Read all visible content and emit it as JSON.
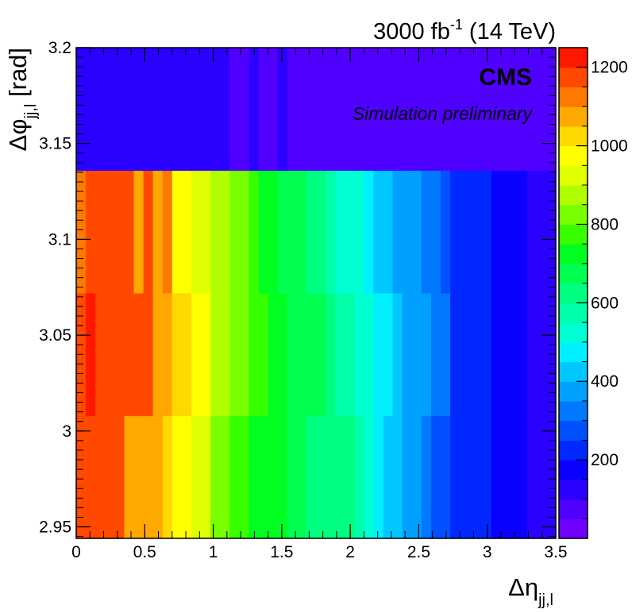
{
  "chart_data": {
    "type": "heatmap",
    "title": "3000 fb^{-1} (14 TeV)",
    "title_parts": {
      "main": "3000 fb",
      "sup": "-1",
      "rest": " (14 TeV)"
    },
    "experiment": "CMS",
    "subtitle": "Simulation preliminary",
    "xlabel": {
      "symbol": "Δη",
      "sub": "jj,l"
    },
    "ylabel": {
      "symbol": "Δφ",
      "sub": "jj,l",
      "unit": " [rad]"
    },
    "xlim": [
      0,
      3.5
    ],
    "ylim": [
      2.944,
      3.2
    ],
    "zlim": [
      0,
      1250
    ],
    "x_ticks": [
      "0",
      "0.5",
      "1",
      "1.5",
      "2",
      "2.5",
      "3",
      "3.5"
    ],
    "x_tick_values": [
      0,
      0.5,
      1,
      1.5,
      2,
      2.5,
      3,
      3.5
    ],
    "y_ticks": [
      "2.95",
      "3",
      "3.05",
      "3.1",
      "3.15",
      "3.2"
    ],
    "y_tick_values": [
      2.95,
      3.0,
      3.05,
      3.1,
      3.15,
      3.2
    ],
    "z_ticks": [
      "200",
      "400",
      "600",
      "800",
      "1000",
      "1200"
    ],
    "z_tick_values": [
      200,
      400,
      600,
      800,
      1000,
      1200
    ],
    "palette": [
      "#7000ff",
      "#5000ff",
      "#2a00ff",
      "#0a00ff",
      "#0028ff",
      "#0050ff",
      "#0078ff",
      "#00a0ff",
      "#00c8ff",
      "#00f0ff",
      "#00ffd2",
      "#00ffa8",
      "#00ff80",
      "#00ff50",
      "#00ff20",
      "#38ff00",
      "#78ff00",
      "#b0ff00",
      "#e0ff00",
      "#ffff00",
      "#ffd800",
      "#ffa800",
      "#ff7800",
      "#ff4800",
      "#ff1800"
    ],
    "x_edges": [
      0,
      0.07,
      0.14,
      0.28,
      0.35,
      0.42,
      0.49,
      0.56,
      0.63,
      0.7,
      0.84,
      0.98,
      1.12,
      1.26,
      1.33,
      1.4,
      1.47,
      1.54,
      1.68,
      1.82,
      1.89,
      2.03,
      2.1,
      2.17,
      2.24,
      2.31,
      2.38,
      2.52,
      2.59,
      2.66,
      2.73,
      3.03,
      3.29,
      3.5
    ],
    "y_edges": [
      2.944,
      3.008,
      3.072,
      3.136,
      3.2
    ],
    "rows": [
      [
        1150,
        1150,
        1150,
        1150,
        1050,
        1050,
        1050,
        1050,
        1000,
        950,
        900,
        820,
        780,
        740,
        720,
        700,
        700,
        680,
        640,
        600,
        600,
        560,
        520,
        460,
        430,
        400,
        350,
        320,
        290,
        290,
        200,
        150,
        120
      ],
      [
        1180,
        1220,
        1180,
        1150,
        1150,
        1150,
        1150,
        1080,
        1080,
        1000,
        950,
        880,
        820,
        780,
        760,
        720,
        700,
        680,
        650,
        620,
        580,
        540,
        500,
        470,
        450,
        420,
        380,
        350,
        300,
        300,
        200,
        150,
        120
      ],
      [
        1100,
        1150,
        1150,
        1180,
        1150,
        1080,
        1150,
        1050,
        1100,
        980,
        920,
        850,
        800,
        760,
        740,
        720,
        680,
        660,
        620,
        580,
        540,
        500,
        460,
        430,
        410,
        390,
        360,
        330,
        300,
        290,
        200,
        150,
        120
      ],
      [
        110,
        110,
        110,
        110,
        110,
        110,
        110,
        110,
        110,
        110,
        110,
        110,
        95,
        120,
        95,
        95,
        110,
        80,
        80,
        80,
        80,
        80,
        80,
        80,
        80,
        80,
        80,
        80,
        80,
        80,
        80,
        80,
        80
      ]
    ]
  }
}
